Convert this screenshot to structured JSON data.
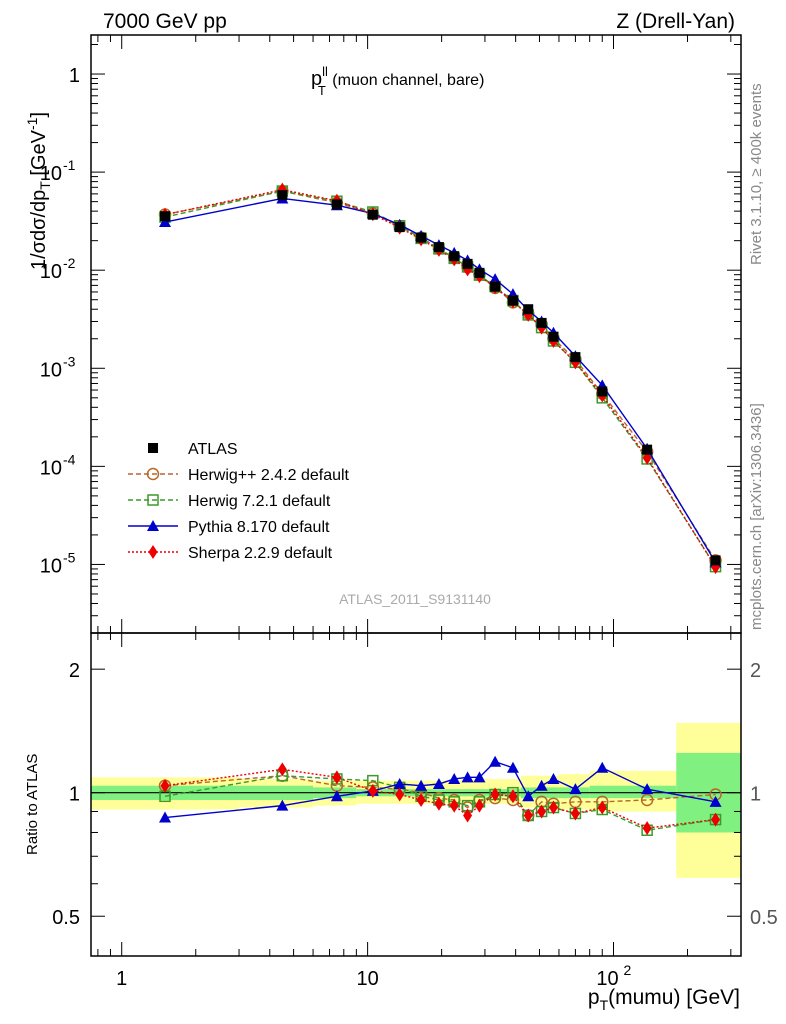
{
  "header": {
    "left": "7000 GeV pp",
    "right": "Z (Drell-Yan)"
  },
  "panel_title": {
    "main": "p",
    "sup": "ll",
    "sub": "T",
    "rest": " (muon channel, bare)"
  },
  "watermark": "ATLAS_2011_S9131140",
  "side_texts": {
    "rivet": "Rivet 3.1.10, ≥ 400k events",
    "mcplots": "mcplots.cern.ch [arXiv:1306.3436]"
  },
  "axes": {
    "ylabel_main": "1/σdσ/dp_T [GeV^-1]",
    "ylabel_ratio": "Ratio to ATLAS",
    "xlabel": "p_T(mumu) [GeV]",
    "xticks": [
      "1",
      "10",
      "10^2"
    ],
    "yticks_main": [
      "1",
      "10^-1",
      "10^-2",
      "10^-3",
      "10^-4",
      "10^-5"
    ],
    "yticks_ratio": [
      "0.5",
      "1",
      "2"
    ]
  },
  "colors": {
    "atlas": "#000000",
    "herwigpp": "#b8672a",
    "herwig7": "#3a9a2a",
    "pythia": "#0000cc",
    "sherpa": "#ee0000",
    "band_inner": "#80f080",
    "band_outer": "#ffff99"
  },
  "chart_data": {
    "type": "scatter",
    "xscale": "log",
    "xlim": [
      0.75,
      330
    ],
    "main": {
      "yscale": "log",
      "ylim": [
        2e-06,
        2.5
      ]
    },
    "ratio": {
      "yscale": "log",
      "ylim": [
        0.4,
        2.45
      ]
    },
    "x": [
      1.5,
      4.5,
      7.5,
      10.5,
      13.5,
      16.5,
      19.5,
      22.5,
      25.5,
      28.5,
      33.0,
      39.0,
      45.0,
      51.0,
      57.0,
      70.0,
      90.0,
      137.0,
      260.0
    ],
    "legend": [
      {
        "key": "atlas",
        "label": "ATLAS"
      },
      {
        "key": "herwigpp",
        "label": "Herwig++ 2.4.2 default"
      },
      {
        "key": "herwig7",
        "label": "Herwig 7.2.1 default"
      },
      {
        "key": "pythia",
        "label": "Pythia 8.170 default"
      },
      {
        "key": "sherpa",
        "label": "Sherpa 2.2.9 default"
      }
    ],
    "series": [
      {
        "key": "atlas",
        "marker": "square",
        "line": "none",
        "values": [
          0.0355,
          0.0582,
          0.0468,
          0.0368,
          0.0275,
          0.0215,
          0.0172,
          0.0139,
          0.0116,
          0.0094,
          0.0068,
          0.0049,
          0.004,
          0.0029,
          0.0021,
          0.0013,
          0.00058,
          0.000148,
          1.1e-05
        ]
      },
      {
        "key": "herwigpp",
        "marker": "circle-open",
        "line": "dashed",
        "values": [
          0.037,
          0.0639,
          0.0487,
          0.038,
          0.028,
          0.0215,
          0.0167,
          0.0133,
          0.0107,
          0.009,
          0.0066,
          0.0047,
          0.0036,
          0.0028,
          0.002,
          0.00123,
          0.00055,
          0.000141,
          1.1e-05
        ]
      },
      {
        "key": "herwig7",
        "marker": "square-open",
        "line": "dashed",
        "values": [
          0.0348,
          0.0641,
          0.0505,
          0.0392,
          0.0284,
          0.0211,
          0.0165,
          0.0132,
          0.0108,
          0.0089,
          0.0068,
          0.0049,
          0.0035,
          0.0026,
          0.0019,
          0.00115,
          0.0005,
          0.000119,
          9.5e-06
        ]
      },
      {
        "key": "pythia",
        "marker": "triangle",
        "line": "solid",
        "values": [
          0.031,
          0.0539,
          0.046,
          0.0378,
          0.0291,
          0.0224,
          0.018,
          0.015,
          0.0126,
          0.0102,
          0.0081,
          0.0057,
          0.0039,
          0.003,
          0.0023,
          0.00133,
          0.00067,
          0.000151,
          1.05e-05
        ]
      },
      {
        "key": "sherpa",
        "marker": "diamond",
        "line": "dotted",
        "values": [
          0.0368,
          0.0662,
          0.051,
          0.0372,
          0.0272,
          0.0206,
          0.0161,
          0.0129,
          0.0102,
          0.0087,
          0.0067,
          0.0048,
          0.0035,
          0.0026,
          0.0019,
          0.00115,
          0.00053,
          0.000122,
          9.4e-06
        ]
      }
    ],
    "ratio_values": [
      {
        "key": "herwigpp",
        "values": [
          1.04,
          1.1,
          1.04,
          1.03,
          1.02,
          1.0,
          0.97,
          0.96,
          0.92,
          0.96,
          0.97,
          0.96,
          0.88,
          0.95,
          0.94,
          0.95,
          0.95,
          0.96,
          0.99
        ]
      },
      {
        "key": "herwig7",
        "values": [
          0.98,
          1.1,
          1.08,
          1.07,
          1.03,
          0.98,
          0.96,
          0.95,
          0.93,
          0.95,
          0.99,
          1.0,
          0.88,
          0.9,
          0.92,
          0.89,
          0.91,
          0.81,
          0.86
        ]
      },
      {
        "key": "pythia",
        "values": [
          0.87,
          0.93,
          0.98,
          1.01,
          1.05,
          1.04,
          1.05,
          1.08,
          1.09,
          1.09,
          1.19,
          1.15,
          0.98,
          1.04,
          1.08,
          1.02,
          1.15,
          1.02,
          0.95
        ]
      },
      {
        "key": "sherpa",
        "values": [
          1.04,
          1.14,
          1.09,
          1.01,
          0.99,
          0.96,
          0.94,
          0.93,
          0.88,
          0.93,
          0.99,
          0.98,
          0.88,
          0.9,
          0.92,
          0.89,
          0.92,
          0.82,
          0.86
        ]
      }
    ],
    "ratio_bands": [
      {
        "x0": 0.75,
        "x1": 3.0,
        "inner": [
          0.96,
          1.04
        ],
        "outer": [
          0.91,
          1.09
        ]
      },
      {
        "x0": 3.0,
        "x1": 6.0,
        "inner": [
          0.96,
          1.04
        ],
        "outer": [
          0.92,
          1.08
        ]
      },
      {
        "x0": 6.0,
        "x1": 9.0,
        "inner": [
          0.97,
          1.03
        ],
        "outer": [
          0.93,
          1.07
        ]
      },
      {
        "x0": 9.0,
        "x1": 24.0,
        "inner": [
          0.98,
          1.02
        ],
        "outer": [
          0.94,
          1.07
        ]
      },
      {
        "x0": 24.0,
        "x1": 42.0,
        "inner": [
          0.98,
          1.02
        ],
        "outer": [
          0.94,
          1.08
        ]
      },
      {
        "x0": 42.0,
        "x1": 60.0,
        "inner": [
          0.97,
          1.03
        ],
        "outer": [
          0.92,
          1.1
        ]
      },
      {
        "x0": 60.0,
        "x1": 80.0,
        "inner": [
          0.97,
          1.03
        ],
        "outer": [
          0.91,
          1.11
        ]
      },
      {
        "x0": 80.0,
        "x1": 180.0,
        "inner": [
          0.97,
          1.04
        ],
        "outer": [
          0.9,
          1.13
        ]
      },
      {
        "x0": 180.0,
        "x1": 330.0,
        "inner": [
          0.8,
          1.25
        ],
        "outer": [
          0.62,
          1.48
        ]
      }
    ]
  }
}
